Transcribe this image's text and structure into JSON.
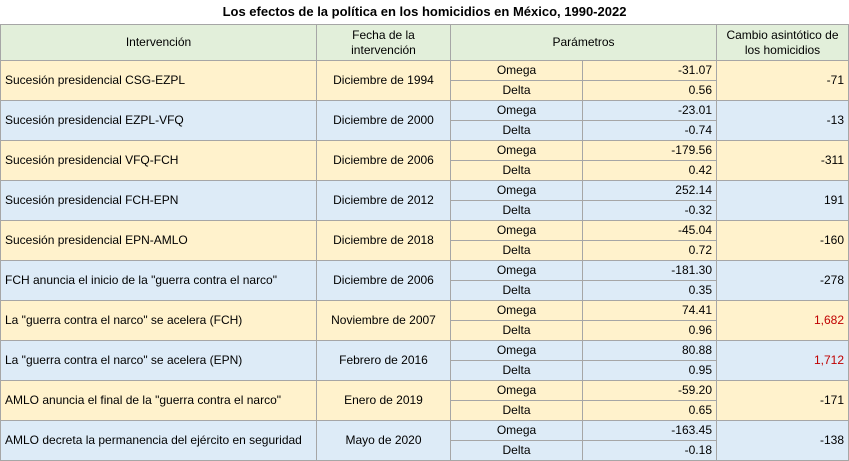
{
  "title": "Los efectos de la política en los homicidios en México, 1990-2022",
  "header": {
    "intervention": "Intervención",
    "date": "Fecha de la intervención",
    "parameters": "Parámetros",
    "change": "Cambio asintótico de los homicidios",
    "fill": "#e2efda"
  },
  "rows": [
    {
      "intervention": "Sucesión presidencial CSG-EZPL",
      "date": "Diciembre de 1994",
      "omega_label": "Omega",
      "omega": "-31.07",
      "delta_label": "Delta",
      "delta": "0.56",
      "change": "-71",
      "fill": "#fff2cc"
    },
    {
      "intervention": "Sucesión presidencial EZPL-VFQ",
      "date": "Diciembre de 2000",
      "omega_label": "Omega",
      "omega": "-23.01",
      "delta_label": "Delta",
      "delta": "-0.74",
      "change": "-13",
      "fill": "#ddebf7"
    },
    {
      "intervention": "Sucesión presidencial VFQ-FCH",
      "date": "Diciembre de 2006",
      "omega_label": "Omega",
      "omega": "-179.56",
      "delta_label": "Delta",
      "delta": "0.42",
      "change": "-311",
      "fill": "#fff2cc"
    },
    {
      "intervention": "Sucesión presidencial FCH-EPN",
      "date": "Diciembre de 2012",
      "omega_label": "Omega",
      "omega": "252.14",
      "delta_label": "Delta",
      "delta": "-0.32",
      "change": "191",
      "fill": "#ddebf7"
    },
    {
      "intervention": "Sucesión presidencial EPN-AMLO",
      "date": "Diciembre de 2018",
      "omega_label": "Omega",
      "omega": "-45.04",
      "delta_label": "Delta",
      "delta": "0.72",
      "change": "-160",
      "fill": "#fff2cc"
    },
    {
      "intervention": "FCH anuncia el inicio de la \"guerra contra el narco\"",
      "date": "Diciembre de 2006",
      "omega_label": "Omega",
      "omega": "-181.30",
      "delta_label": "Delta",
      "delta": "0.35",
      "change": "-278",
      "fill": "#ddebf7"
    },
    {
      "intervention": "La \"guerra contra el narco\" se acelera (FCH)",
      "date": "Noviembre de 2007",
      "omega_label": "Omega",
      "omega": "74.41",
      "delta_label": "Delta",
      "delta": "0.96",
      "change": "1,682",
      "change_color": "#c00000",
      "fill": "#fff2cc"
    },
    {
      "intervention": "La \"guerra contra el narco\" se acelera (EPN)",
      "date": "Febrero de 2016",
      "omega_label": "Omega",
      "omega": "80.88",
      "delta_label": "Delta",
      "delta": "0.95",
      "change": "1,712",
      "change_color": "#c00000",
      "fill": "#ddebf7"
    },
    {
      "intervention": "AMLO anuncia el final de la \"guerra contra el narco\"",
      "date": "Enero de 2019",
      "omega_label": "Omega",
      "omega": "-59.20",
      "delta_label": "Delta",
      "delta": "0.65",
      "change": "-171",
      "fill": "#fff2cc"
    },
    {
      "intervention": "AMLO decreta la permanencia del ejército en seguridad",
      "date": "Mayo de 2020",
      "omega_label": "Omega",
      "omega": "-163.45",
      "delta_label": "Delta",
      "delta": "-0.18",
      "change": "-138",
      "fill": "#ddebf7"
    }
  ]
}
